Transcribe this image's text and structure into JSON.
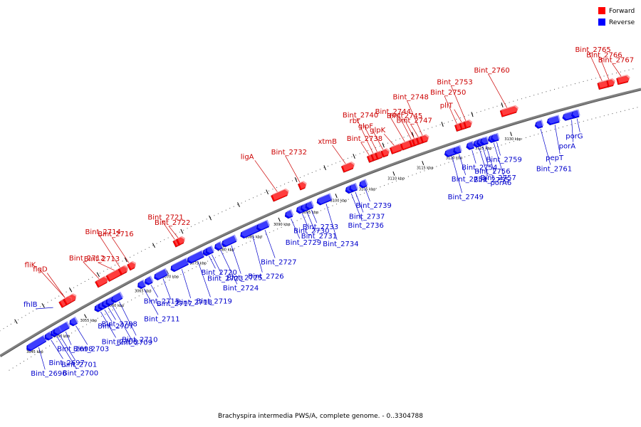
{
  "caption": "Brachyspira intermedia PWS/A, complete genome. - 0..3304788",
  "legend": [
    {
      "label": "Forward",
      "color": "#ff0000"
    },
    {
      "label": "Reverse",
      "color": "#0000ff"
    }
  ],
  "colors": {
    "forward": "#ff0000",
    "reverse": "#0000ff",
    "forward_label": "#cc0000",
    "reverse_label": "#0000cc",
    "backbone": "#808080"
  },
  "ticks": [
    {
      "kbp": 3045,
      "label": "3045 kbp"
    },
    {
      "kbp": 3050,
      "label": "3050 kbp"
    },
    {
      "kbp": 3055,
      "label": "3055 kbp"
    },
    {
      "kbp": 3060,
      "label": "3060 kbp"
    },
    {
      "kbp": 3065,
      "label": "3065 kbp"
    },
    {
      "kbp": 3070,
      "label": "3070 kbp"
    },
    {
      "kbp": 3075,
      "label": "3075 kbp"
    },
    {
      "kbp": 3080,
      "label": "3080 kbp"
    },
    {
      "kbp": 3085,
      "label": "3085 kbp"
    },
    {
      "kbp": 3090,
      "label": "3090 kbp"
    },
    {
      "kbp": 3095,
      "label": "3095 kbp"
    },
    {
      "kbp": 3100,
      "label": "3100 kbp"
    },
    {
      "kbp": 3105,
      "label": "3105 kbp"
    },
    {
      "kbp": 3110,
      "label": "3110 kbp"
    },
    {
      "kbp": 3115,
      "label": "3115 kbp"
    },
    {
      "kbp": 3120,
      "label": "3120 kbp"
    },
    {
      "kbp": 3125,
      "label": "3125 kbp"
    },
    {
      "kbp": 3130,
      "label": "3130 kbp"
    }
  ],
  "forward_genes": [
    {
      "name": "fliK",
      "kbp": 3052.4,
      "len": 2.4
    },
    {
      "name": "flgD",
      "kbp": 3053.2
    },
    {
      "name": "Bint_2712",
      "kbp": 3059.0,
      "len": 1.6
    },
    {
      "name": "Bint_2713",
      "kbp": 3061.0,
      "len": 3.2
    },
    {
      "name": "Bint_2714",
      "kbp": 3063.2
    },
    {
      "name": "Bint_2716",
      "kbp": 3064.8
    },
    {
      "name": "Bint_2721",
      "kbp": 3073.0
    },
    {
      "name": "Bint_2722",
      "kbp": 3073.6
    },
    {
      "name": "ligA",
      "kbp": 3090.3,
      "len": 2.4
    },
    {
      "name": "Bint_2732",
      "kbp": 3095.0
    },
    {
      "name": "xtmB",
      "kbp": 3102.5,
      "len": 1.6
    },
    {
      "name": "Bint_2738",
      "kbp": 3106.9
    },
    {
      "name": "Bint_2740",
      "kbp": 3107.6
    },
    {
      "name": "rbr",
      "kbp": 3108.3
    },
    {
      "name": "glpF",
      "kbp": 3109.3
    },
    {
      "name": "glpK",
      "kbp": 3110.8,
      "len": 1.6
    },
    {
      "name": "Bint_2744",
      "kbp": 3112.6,
      "len": 1.6
    },
    {
      "name": "Bint_2745",
      "kbp": 3114.1
    },
    {
      "name": "rocF",
      "kbp": 3114.6
    },
    {
      "name": "Bint_2747",
      "kbp": 3115.3
    },
    {
      "name": "Bint_2748",
      "kbp": 3116.0
    },
    {
      "name": "Bint_2750",
      "kbp": 3121.8
    },
    {
      "name": "pliT",
      "kbp": 3122.6
    },
    {
      "name": "Bint_2753",
      "kbp": 3123.3
    },
    {
      "name": "Bint_2760",
      "kbp": 3129.4,
      "len": 2.4
    },
    {
      "name": "Bint_2765",
      "kbp": 3145.5,
      "len": 1.6
    },
    {
      "name": "Bint_2766",
      "kbp": 3147.0
    },
    {
      "name": "Bint_2767",
      "kbp": 3148.6,
      "len": 1.6
    }
  ],
  "forward_labels_top_to_bottom": [
    "Bint_2767",
    "Bint_2766",
    "Bint_2765",
    "Bint_2760",
    "Bint_2747",
    "rocF",
    "Bint_2750",
    "Bint_2753",
    "pliT",
    "Bint_2745",
    "Bint_2744",
    "Bint_2748",
    "glpK",
    "glpF",
    "rbr",
    "Bint_2740",
    "Bint_2738",
    "xtmB",
    "Bint_2732",
    "ligA",
    "Bint_2722",
    "Bint_2721",
    "Bint_2716",
    "Bint_2714",
    "Bint_2713",
    "Bint_2712",
    "flgD",
    "fliK"
  ],
  "reverse_genes": [
    {
      "name": "Bint_2696",
      "kbp": 3044.5,
      "len": 3.0
    },
    {
      "name": "Bint_2697",
      "kbp": 3047.9
    },
    {
      "name": "Bint_2698",
      "kbp": 3050.2,
      "len": 1.6
    },
    {
      "name": "Bint_2700",
      "kbp": 3049.0
    },
    {
      "name": "Bint_2701",
      "kbp": 3049.5
    },
    {
      "name": "Bint_2703",
      "kbp": 3052.5
    },
    {
      "name": "Bint_2706",
      "kbp": 3057.1
    },
    {
      "name": "Bint_2707",
      "kbp": 3057.8
    },
    {
      "name": "Bint_2708",
      "kbp": 3058.5
    },
    {
      "name": "Bint_2709",
      "kbp": 3059.2
    },
    {
      "name": "Bint_2710",
      "kbp": 3060.2,
      "len": 1.4
    },
    {
      "name": "Bint_2711",
      "kbp": 3065.0
    },
    {
      "name": "Bint_2715",
      "kbp": 3066.3
    },
    {
      "name": "Bint_2717",
      "kbp": 3068.0,
      "len": 1.8
    },
    {
      "name": "Bint_2718",
      "kbp": 3071.0,
      "len": 2.6
    },
    {
      "name": "Bint_2719",
      "kbp": 3074.0,
      "len": 2.4
    },
    {
      "name": "Bint_2720",
      "kbp": 3076.8
    },
    {
      "name": "Bint_2723",
      "kbp": 3077.3
    },
    {
      "name": "Bint_2724",
      "kbp": 3078.9
    },
    {
      "name": "Bint_2725",
      "kbp": 3080.2,
      "len": 2.0
    },
    {
      "name": "Bint_2726",
      "kbp": 3083.5,
      "len": 3.0
    },
    {
      "name": "Bint_2727",
      "kbp": 3086.4,
      "len": 1.6
    },
    {
      "name": "Bint_2729",
      "kbp": 3091.4
    },
    {
      "name": "Bint_2730",
      "kbp": 3093.4
    },
    {
      "name": "Bint_2731",
      "kbp": 3094.2
    },
    {
      "name": "Bint_2733",
      "kbp": 3095.0
    },
    {
      "name": "Bint_2734",
      "kbp": 3097.0,
      "len": 2.0
    },
    {
      "name": "Bint_2736",
      "kbp": 3102.0
    },
    {
      "name": "Bint_2737",
      "kbp": 3102.7
    },
    {
      "name": "Bint_2739",
      "kbp": 3104.4
    },
    {
      "name": "Bint_2749",
      "kbp": 3119.1,
      "len": 1.4
    },
    {
      "name": "Bint_2751",
      "kbp": 3120.6
    },
    {
      "name": "Bint_2754",
      "kbp": 3122.8
    },
    {
      "name": "Bint_2755",
      "kbp": 3124.0
    },
    {
      "name": "Bint_2756",
      "kbp": 3124.6
    },
    {
      "name": "Bint_2757",
      "kbp": 3125.2
    },
    {
      "name": "porA6",
      "kbp": 3126.5
    },
    {
      "name": "Bint_2759",
      "kbp": 3127.0
    },
    {
      "name": "Bint_2761",
      "kbp": 3134.4
    },
    {
      "name": "pepT",
      "kbp": 3136.4,
      "len": 1.6
    },
    {
      "name": "porA",
      "kbp": 3139.0,
      "len": 2.0
    },
    {
      "name": "porG",
      "kbp": 3140.5
    }
  ],
  "reverse_labels_top_to_bottom": [
    "porG",
    "porA",
    "pepT",
    "Bint_2761",
    "Bint_2759",
    "Bint_2751",
    "Bint_2755",
    "Bint_2749",
    "Bint_2754",
    "Bint_2756",
    "Bint_2757",
    "porA6",
    "Bint_2739",
    "Bint_2737",
    "Bint_2736",
    "Bint_2734",
    "Bint_2733",
    "Bint_2729",
    "Bint_2727",
    "Bint_2726",
    "Bint_2730",
    "Bint_2731",
    "Bint_2725",
    "Bint_2724",
    "Bint_2720",
    "Bint_2723",
    "Bint_2718",
    "Bint_2719",
    "Bint_2715",
    "Bint_2717",
    "Bint_2711",
    "Bint_2710",
    "Bint_2708",
    "Bint_2703",
    "Bint_2706",
    "Bint_2700",
    "Bint_2707",
    "Bint_2697",
    "Bint_2701",
    "Bint_2709",
    "Bint_2698",
    "Bint_2696"
  ],
  "outlier_label": "fhlB"
}
